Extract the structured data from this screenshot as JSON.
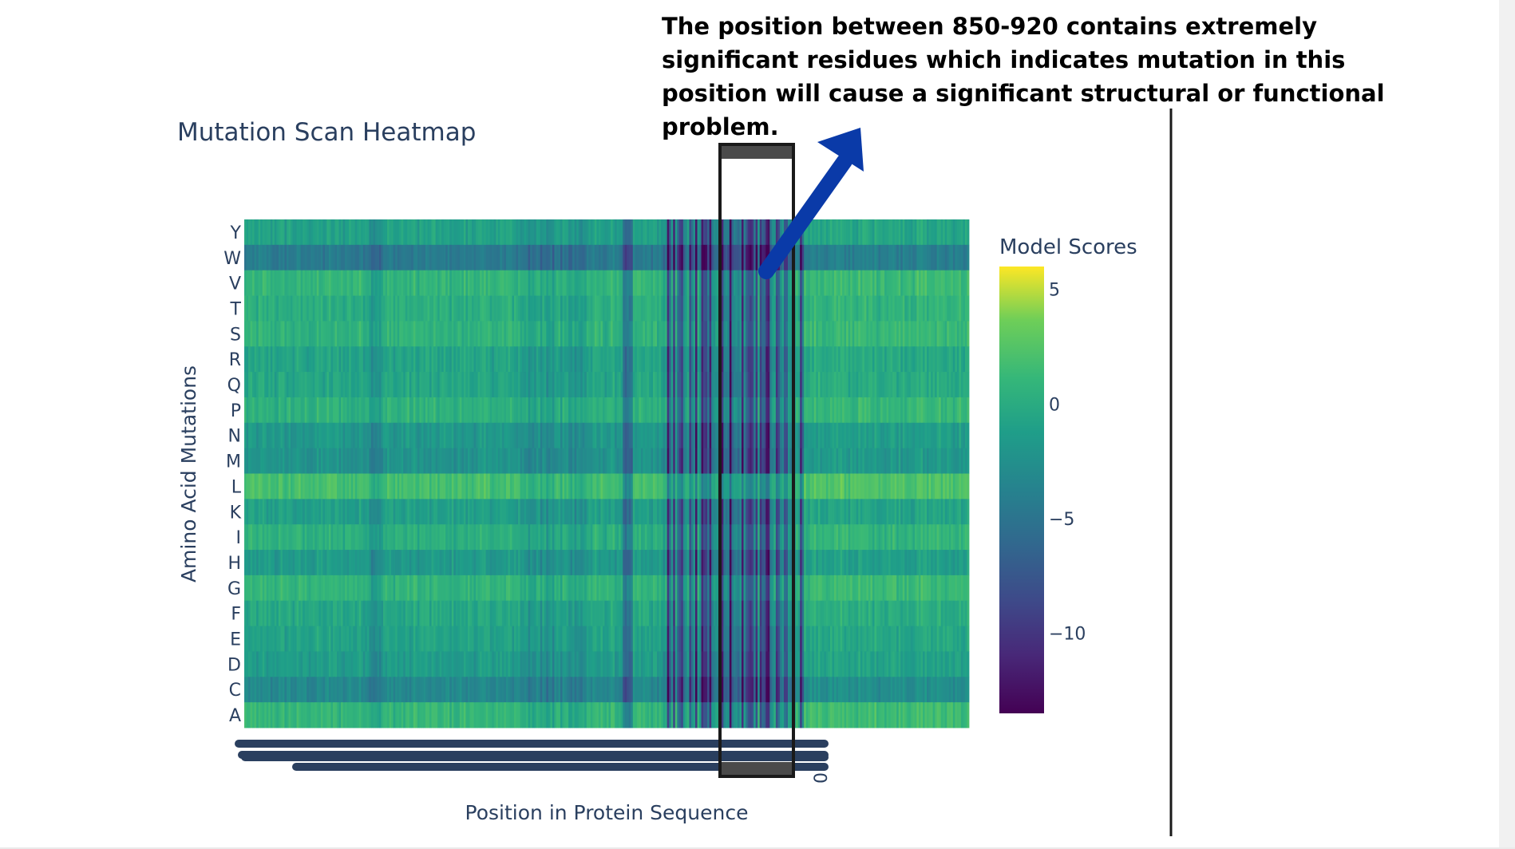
{
  "annotation": {
    "text": "The position between 850-920 contains extremely significant residues which indicates mutation in this position will cause a significant structural or functional problem."
  },
  "colors": {
    "arrow": "#0a3aa8",
    "highlight_box": "#1a1a1a",
    "divider": "#1a1a1a",
    "axis_text": "#2a3f5f"
  },
  "chart_data": {
    "type": "heatmap",
    "title": "Mutation Scan Heatmap",
    "xlabel": "Position in Protein Sequence",
    "ylabel": "Amino Acid Mutations",
    "rows": [
      "Y",
      "W",
      "V",
      "T",
      "S",
      "R",
      "Q",
      "P",
      "N",
      "M",
      "L",
      "K",
      "I",
      "H",
      "G",
      "F",
      "E",
      "D",
      "C",
      "A"
    ],
    "x_tick_label_visible": "0",
    "colorscale": "viridis",
    "colorbar": {
      "title": "Model Scores",
      "zmin": -13.5,
      "zmax": 6,
      "ticks": [
        {
          "value": 5,
          "label": "5"
        },
        {
          "value": 0,
          "label": "0"
        },
        {
          "value": -5,
          "label": "−5"
        },
        {
          "value": -10,
          "label": "−10"
        }
      ]
    },
    "highlighted_region": {
      "start": 850,
      "end": 920
    },
    "row_baseline_scores": {
      "Y": -1.0,
      "W": -4.5,
      "V": 0.8,
      "T": 0.2,
      "S": 0.6,
      "R": -0.8,
      "Q": -0.6,
      "P": 0.5,
      "N": -1.8,
      "M": -2.2,
      "L": 1.8,
      "K": -1.2,
      "I": 0.3,
      "H": -1.6,
      "G": 0.8,
      "F": -0.4,
      "E": -0.9,
      "D": -1.4,
      "C": -3.2,
      "A": 0.9
    },
    "strong_negative_columns": "positions ~780-920 (highly deleterious across most substitutions)"
  }
}
